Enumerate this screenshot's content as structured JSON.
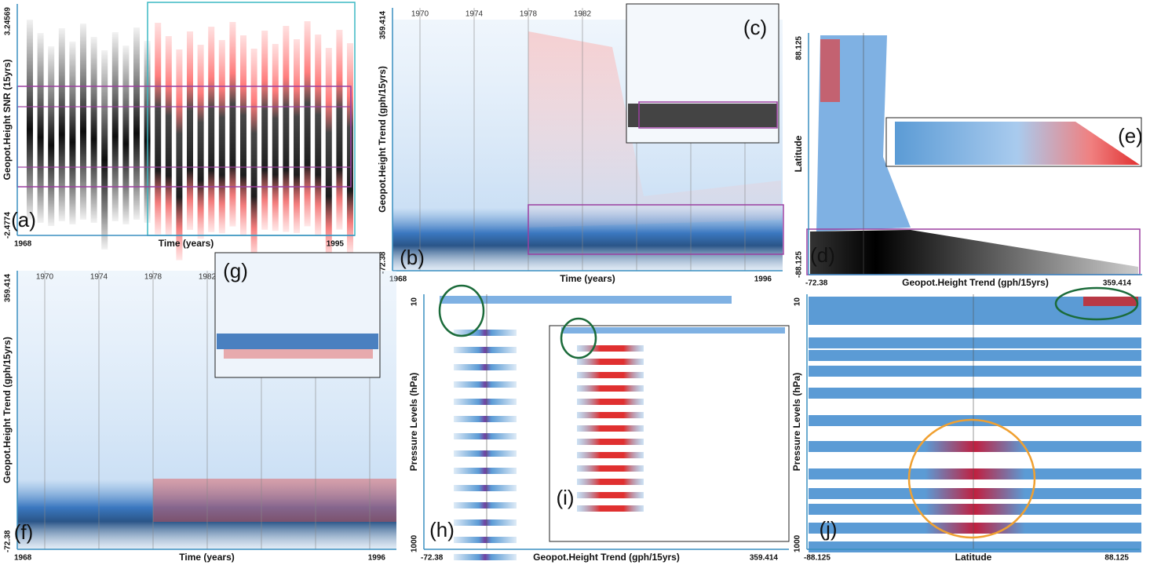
{
  "panels": [
    {
      "label": "(a)",
      "y_title": "Geopot.Height SNR (15yrs)",
      "y_top": "3.24569",
      "y_bottom": "-2.4774",
      "x_title": "Time (years)",
      "x_left": "1968",
      "x_right": "1995"
    },
    {
      "label": "(b)",
      "y_title": "Geopot.Height Trend (gph/15yrs)",
      "y_top": "359.414",
      "y_bottom": "-72.38",
      "x_title": "Time (years)",
      "x_left": "1968",
      "x_right": "1996",
      "years": [
        "1970",
        "1974",
        "1978",
        "1982"
      ],
      "inset": "(c)"
    },
    {
      "label": "(d)",
      "y_title": "Latitude",
      "y_top": "88.125",
      "y_bottom": "-88.125",
      "x_title": "Geopot.Height Trend (gph/15yrs)",
      "x_left": "-72.38",
      "x_right": "359.414",
      "inset": "(e)"
    },
    {
      "label": "(f)",
      "y_title": "Geopot.Height Trend (gph/15yrs)",
      "y_top": "359.414",
      "y_bottom": "-72.38",
      "x_title": "Time (years)",
      "x_left": "1968",
      "x_right": "1996",
      "years": [
        "1970",
        "1974",
        "1978",
        "1982"
      ],
      "inset": "(g)"
    },
    {
      "label": "(h)",
      "y_title": "Pressure Levels (hPa)",
      "y_top": "10",
      "y_bottom": "1000",
      "x_title": "Geopot.Height Trend (gph/15yrs)",
      "x_left": "-72.38",
      "x_right": "359.414",
      "inset": "(i)"
    },
    {
      "label": "(j)",
      "y_title": "Pressure Levels (hPa)",
      "y_top": "10",
      "y_bottom": "1000",
      "x_title": "Latitude",
      "x_left": "-88.125",
      "x_right": "88.125"
    }
  ]
}
